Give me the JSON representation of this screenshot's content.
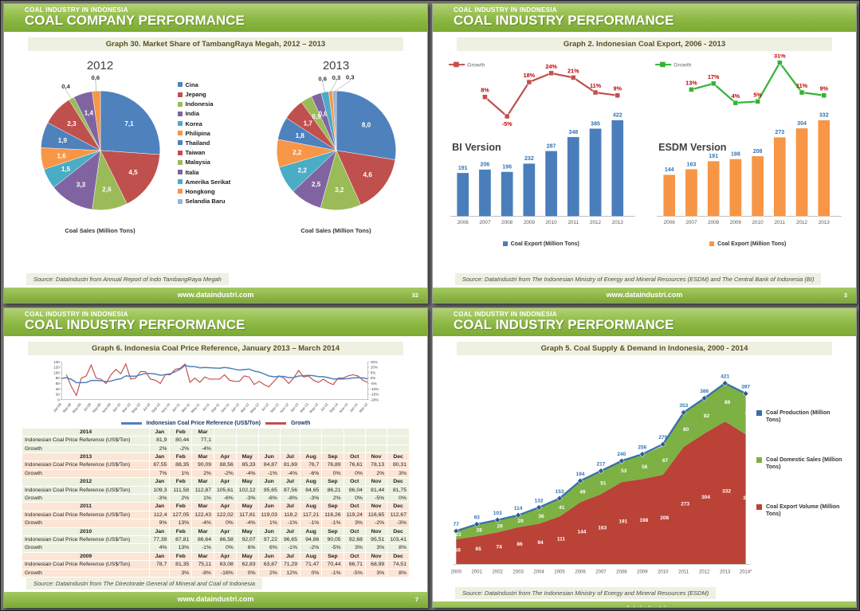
{
  "footer_url": "www.dataindustri.com",
  "colors": {
    "series6": [
      "#4F81BD",
      "#C0504D",
      "#9BBB59",
      "#8064A2",
      "#4BACC6",
      "#F79646"
    ],
    "pale13": "#95B3D7",
    "blue_bar": "#4A7EBB",
    "orange_bar": "#F79646",
    "bar_value_label": "#2E74B5",
    "growth_red_line": "#C0504D",
    "growth_green_line": "#33B333",
    "growth_label": "#C00000",
    "price_blue": "#4F81BD",
    "area_red": "#BB4236",
    "area_green": "#7DB144",
    "prod_blue": "#3A6FA8",
    "axis_text": "#404040"
  },
  "slide1": {
    "kicker": "COAL INDUSTRY IN INDONESIA",
    "title": "COAL COMPANY PERFORMANCE",
    "graph_title": "Graph 30. Market Share of TambangRaya Megah, 2012 – 2013",
    "source": "Source: DataIndustri from Annual Report of Indo TambangRaya Megah",
    "page": "32"
  },
  "slide2": {
    "kicker": "COAL INDUSTRY IN INDONESIA",
    "title": "COAL INDUSTRY PERFORMANCE",
    "graph_title": "Graph 2. Indonesian Coal Export, 2006 - 2013",
    "source": "Source: DataIndustri from The Indonesian Ministry of Energy and Mineral Resources (ESDM) and The Central Bank of Indonesia (BI)",
    "page": "3"
  },
  "slide3": {
    "kicker": "COAL INDUSTRY IN INDONESIA",
    "title": "COAL INDUSTRY PERFORMANCE",
    "graph_title": "Graph 6. Indonesia Coal Price Reference, January 2013 – March 2014",
    "source": "Source: DataIndustri from The Directorate General of Mineral and Coal of Indonesia",
    "page": "7",
    "table": {
      "months": [
        "Jan",
        "Feb",
        "Mar",
        "Apr",
        "May",
        "Jun",
        "Jul",
        "Aug",
        "Sep",
        "Oct",
        "Nov",
        "Dec"
      ],
      "price_label": "Indonesian Coal Price Reference (US$/Ton)",
      "growth_label": "Growth",
      "blocks": [
        {
          "year": "2014",
          "tint": "green",
          "cols": 3,
          "price": [
            "81,9",
            "80,44",
            "77,1"
          ],
          "growth": [
            "2%",
            "-2%",
            "-4%"
          ]
        },
        {
          "year": "2013",
          "tint": "pink",
          "cols": 12,
          "price": [
            "87,55",
            "88,35",
            "90,09",
            "88,56",
            "85,33",
            "84,87",
            "81,69",
            "76,7",
            "76,89",
            "76,61",
            "78,13",
            "80,31"
          ],
          "growth": [
            "7%",
            "1%",
            "2%",
            "-2%",
            "-4%",
            "-1%",
            "-4%",
            "-6%",
            "0%",
            "0%",
            "2%",
            "3%"
          ]
        },
        {
          "year": "2012",
          "tint": "green",
          "cols": 12,
          "price": [
            "109,3",
            "111,58",
            "112,87",
            "105,61",
            "102,12",
            "95,65",
            "87,56",
            "84,65",
            "86,21",
            "86,04",
            "81,44",
            "81,75"
          ],
          "growth": [
            "-3%",
            "2%",
            "1%",
            "-6%",
            "-3%",
            "-6%",
            "-8%",
            "-3%",
            "2%",
            "0%",
            "-5%",
            "0%"
          ]
        },
        {
          "year": "2011",
          "tint": "pink",
          "cols": 12,
          "price": [
            "112,4",
            "127,05",
            "122,43",
            "122,02",
            "117,61",
            "119,03",
            "118,2",
            "117,21",
            "116,26",
            "119,24",
            "116,65",
            "112,67"
          ],
          "growth": [
            "9%",
            "13%",
            "-4%",
            "0%",
            "-4%",
            "1%",
            "-1%",
            "-1%",
            "-1%",
            "3%",
            "-2%",
            "-3%"
          ]
        },
        {
          "year": "2010",
          "tint": "green",
          "cols": 12,
          "price": [
            "77,39",
            "87,81",
            "86,64",
            "86,58",
            "92,07",
            "97,22",
            "96,65",
            "94,86",
            "90,05",
            "92,68",
            "95,51",
            "103,41"
          ],
          "growth": [
            "4%",
            "13%",
            "-1%",
            "0%",
            "6%",
            "6%",
            "-1%",
            "-2%",
            "-5%",
            "3%",
            "3%",
            "8%"
          ]
        },
        {
          "year": "2009",
          "tint": "pink",
          "cols": 12,
          "price": [
            "78,7",
            "81,35",
            "75,11",
            "63,08",
            "62,83",
            "63,87",
            "71,29",
            "71,47",
            "70,44",
            "66,71",
            "68,99",
            "74,51"
          ],
          "growth": [
            "",
            "3%",
            "-8%",
            "-16%",
            "0%",
            "2%",
            "12%",
            "0%",
            "-1%",
            "-5%",
            "3%",
            "8%"
          ]
        }
      ]
    }
  },
  "slide4": {
    "kicker": "COAL INDUSTRY IN INDONESIA",
    "title": "COAL INDUSTRY PERFORMANCE",
    "graph_title": "Graph 5. Coal Supply & Demand in Indonesia, 2000 - 2014",
    "source": "Source: DataIndustri from The Indonesian Ministry of Energy and Mineral Resources (ESDM)",
    "page": "6"
  },
  "chart_data": [
    {
      "id": "pie2012",
      "type": "pie",
      "title": "2012",
      "caption": "Coal Sales (Million Tons)",
      "legend": [
        "Cina",
        "Jepang",
        "Indonesia",
        "India",
        "Korea",
        "Philipina",
        "Thailand",
        "Taiwan",
        "Malaysia",
        "Italia",
        "Amerika Serikat",
        "Hongkong",
        "Selandia Baru"
      ],
      "values": [
        7.1,
        4.5,
        2.6,
        3.3,
        1.5,
        1.6,
        1.9,
        2.3,
        0.4,
        1.4,
        0.6
      ],
      "labels": [
        "7,1",
        "4,5",
        "2,6",
        "3,3",
        "1,5",
        "1,6",
        "1,9",
        "2,3",
        "0,4",
        "1,4",
        "0,6"
      ],
      "color_index": [
        0,
        1,
        2,
        3,
        4,
        5,
        6,
        7,
        8,
        9,
        11
      ]
    },
    {
      "id": "pie2013",
      "type": "pie",
      "title": "2013",
      "caption": "Coal Sales (Million Tons)",
      "values": [
        8.0,
        4.6,
        3.2,
        2.5,
        2.2,
        2.2,
        1.8,
        1.7,
        0.9,
        0.8,
        0.6,
        0.3,
        0.3
      ],
      "labels": [
        "8,0",
        "4,6",
        "3,2",
        "2,5",
        "2,2",
        "2,2",
        "1,8",
        "1,7",
        "0,9",
        "0,8",
        "0,6",
        "0,3",
        "0,3"
      ],
      "color_index": [
        0,
        1,
        2,
        3,
        4,
        5,
        6,
        7,
        8,
        9,
        10,
        11,
        12
      ]
    },
    {
      "id": "bi",
      "type": "bar",
      "version_label": "BI Version",
      "categories": [
        "2006",
        "2007",
        "2008",
        "2009",
        "2010",
        "2011",
        "2012",
        "2013"
      ],
      "values": [
        191,
        206,
        196,
        232,
        287,
        348,
        385,
        422
      ],
      "bar_legend": "Coal Export (Million Tons)",
      "line_legend": "Growth",
      "growth_pct": [
        8,
        -5,
        18,
        24,
        21,
        11,
        9
      ],
      "growth_labels": [
        "8%",
        "-5%",
        "18%",
        "24%",
        "21%",
        "11%",
        "9%"
      ]
    },
    {
      "id": "esdm",
      "type": "bar",
      "version_label": "ESDM Version",
      "categories": [
        "2006",
        "2007",
        "2008",
        "2009",
        "2010",
        "2011",
        "2012",
        "2013"
      ],
      "values": [
        144,
        163,
        191,
        198,
        208,
        273,
        304,
        332
      ],
      "bar_legend": "Coal Export (Million Tons)",
      "line_legend": "Growth",
      "growth_pct": [
        13,
        17,
        4,
        5,
        31,
        11,
        9
      ],
      "growth_labels": [
        "13%",
        "17%",
        "4%",
        "5%",
        "31%",
        "11%",
        "9%"
      ]
    },
    {
      "id": "price",
      "type": "line",
      "ylim_left": [
        0,
        140
      ],
      "left_ticks": [
        0,
        20,
        40,
        60,
        80,
        100,
        120,
        140
      ],
      "ylim_right": [
        -20,
        15
      ],
      "right_ticks": [
        "15%",
        "10%",
        "5%",
        "0%",
        "-5%",
        "-10%",
        "-15%",
        "-20%"
      ],
      "x_labels": [
        "Jan-09",
        "Mar-09",
        "May-09",
        "Jul-09",
        "Sep-09",
        "Nov-09",
        "Jan-10",
        "Mar-10",
        "May-10",
        "Jul-10",
        "Sep-10",
        "Nov-10",
        "Jan-11",
        "Mar-11",
        "May-11",
        "Jul-11",
        "Sep-11",
        "Nov-11",
        "Jan-12",
        "Mar-12",
        "May-12",
        "Jul-12",
        "Sep-12",
        "Nov-12",
        "Jan-13",
        "Mar-13",
        "May-13",
        "Jul-13",
        "Sep-13",
        "Nov-13",
        "Jan-14",
        "Mar-14"
      ],
      "series": [
        {
          "name": "Indonesian Coal Price Reference (US$/Ton)",
          "axis": "left",
          "values": [
            78.7,
            81.35,
            75.11,
            63.08,
            62.83,
            63.87,
            71.29,
            71.47,
            70.44,
            66.71,
            68.99,
            74.51,
            77.39,
            87.81,
            86.64,
            86.58,
            92.07,
            97.22,
            96.65,
            94.86,
            90.05,
            92.68,
            95.51,
            103.41,
            112.4,
            127.05,
            122.43,
            122.02,
            117.61,
            119.03,
            118.2,
            117.21,
            116.26,
            119.24,
            116.65,
            112.67,
            109.3,
            111.58,
            112.87,
            105.61,
            102.12,
            95.65,
            87.56,
            84.65,
            86.21,
            86.04,
            81.44,
            81.75,
            87.55,
            88.35,
            90.09,
            88.56,
            85.33,
            84.87,
            81.69,
            76.7,
            76.89,
            76.61,
            78.13,
            80.31,
            81.9,
            80.44,
            77.1
          ]
        },
        {
          "name": "Growth",
          "axis": "right",
          "values": [
            null,
            3,
            -8,
            -16,
            0,
            2,
            12,
            0,
            -1,
            -5,
            3,
            8,
            4,
            13,
            -1,
            0,
            6,
            6,
            -1,
            -2,
            -5,
            3,
            3,
            8,
            9,
            13,
            -4,
            0,
            -4,
            1,
            -1,
            -1,
            -1,
            3,
            -2,
            -3,
            -3,
            2,
            1,
            -6,
            -3,
            -6,
            -8,
            -3,
            2,
            0,
            -5,
            0,
            7,
            1,
            2,
            -2,
            -4,
            -1,
            -4,
            -6,
            0,
            0,
            2,
            3,
            2,
            -2,
            -4
          ]
        }
      ]
    },
    {
      "id": "supply",
      "type": "area",
      "categories": [
        "2000",
        "2001",
        "2002",
        "2003",
        "2004",
        "2005",
        "2006",
        "2007",
        "2008",
        "2009",
        "2010",
        "2011",
        "2012",
        "2013",
        "2014*"
      ],
      "series": [
        {
          "name": "Coal Production (Million Tons)",
          "values": [
            77,
            93,
            103,
            114,
            132,
            153,
            194,
            217,
            240,
            256,
            279,
            353,
            386,
            421,
            397
          ]
        },
        {
          "name": "Coal Domestic Sales (Million Tons)",
          "values": [
            22,
            28,
            29,
            29,
            36,
            41,
            49,
            51,
            53,
            56,
            67,
            80,
            82,
            89,
            96
          ]
        },
        {
          "name": "Coal Export Volume (Million Tons)",
          "values": [
            58,
            65,
            74,
            86,
            94,
            111,
            144,
            163,
            191,
            198,
            208,
            273,
            304,
            332,
            302
          ]
        }
      ]
    }
  ]
}
